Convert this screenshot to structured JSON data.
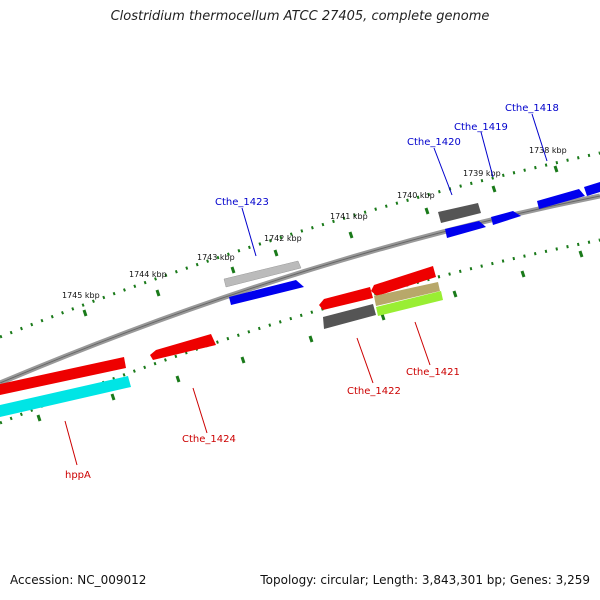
{
  "title": "Clostridium thermocellum ATCC 27405, complete genome",
  "footer": {
    "accession": "Accession: NC_009012",
    "topology": "Topology: circular; Length: 3,843,301 bp; Genes: 3,259"
  },
  "scale_labels": [
    "1745 kbp",
    "1744 kbp",
    "1743 kbp",
    "1742 kbp",
    "1741 kbp",
    "1740 kbp",
    "1739 kbp",
    "1738 kbp"
  ],
  "gene_labels": {
    "top": [
      "Cthe_1423",
      "Cthe_1420",
      "Cthe_1419",
      "Cthe_1418"
    ],
    "bottom": [
      "hppA",
      "Cthe_1424",
      "Cthe_1422",
      "Cthe_1421"
    ]
  },
  "colors": {
    "forward_label": "#0000cc",
    "reverse_label": "#cc0000",
    "backbone": "#888888",
    "tick": "#1a7a1a",
    "cds_red": "#ee0000",
    "cds_blue": "#0000ee",
    "cds_cyan": "#00e5e5",
    "cds_gray": "#666666",
    "cds_lightgray": "#bbbbbb",
    "cds_olive": "#b8a86a",
    "cds_green": "#99ee33"
  }
}
